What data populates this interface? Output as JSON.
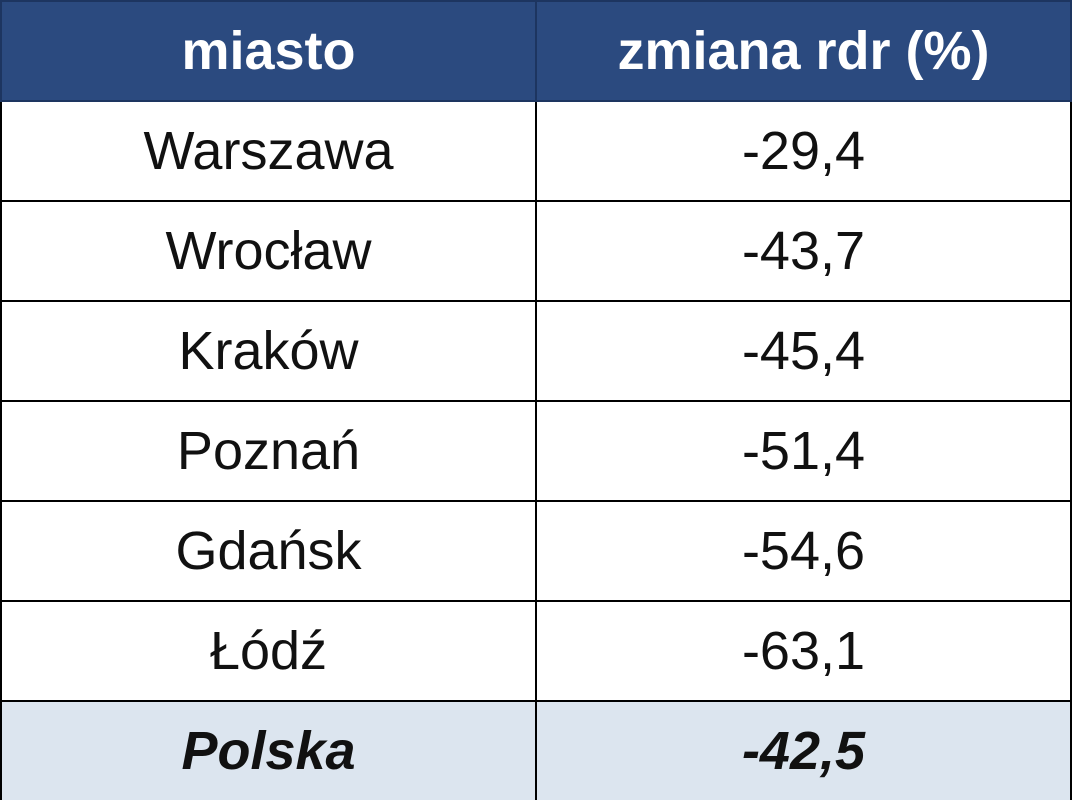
{
  "table": {
    "header": [
      "miasto",
      "zmiana rdr (%)"
    ],
    "rows": [
      [
        "Warszawa",
        "-29,4"
      ],
      [
        "Wrocław",
        "-43,7"
      ],
      [
        "Kraków",
        "-45,4"
      ],
      [
        "Poznań",
        "-51,4"
      ],
      [
        "Gdańsk",
        "-54,6"
      ],
      [
        "Łódź",
        "-63,1"
      ]
    ],
    "total": [
      "Polska",
      "-42,5"
    ]
  }
}
